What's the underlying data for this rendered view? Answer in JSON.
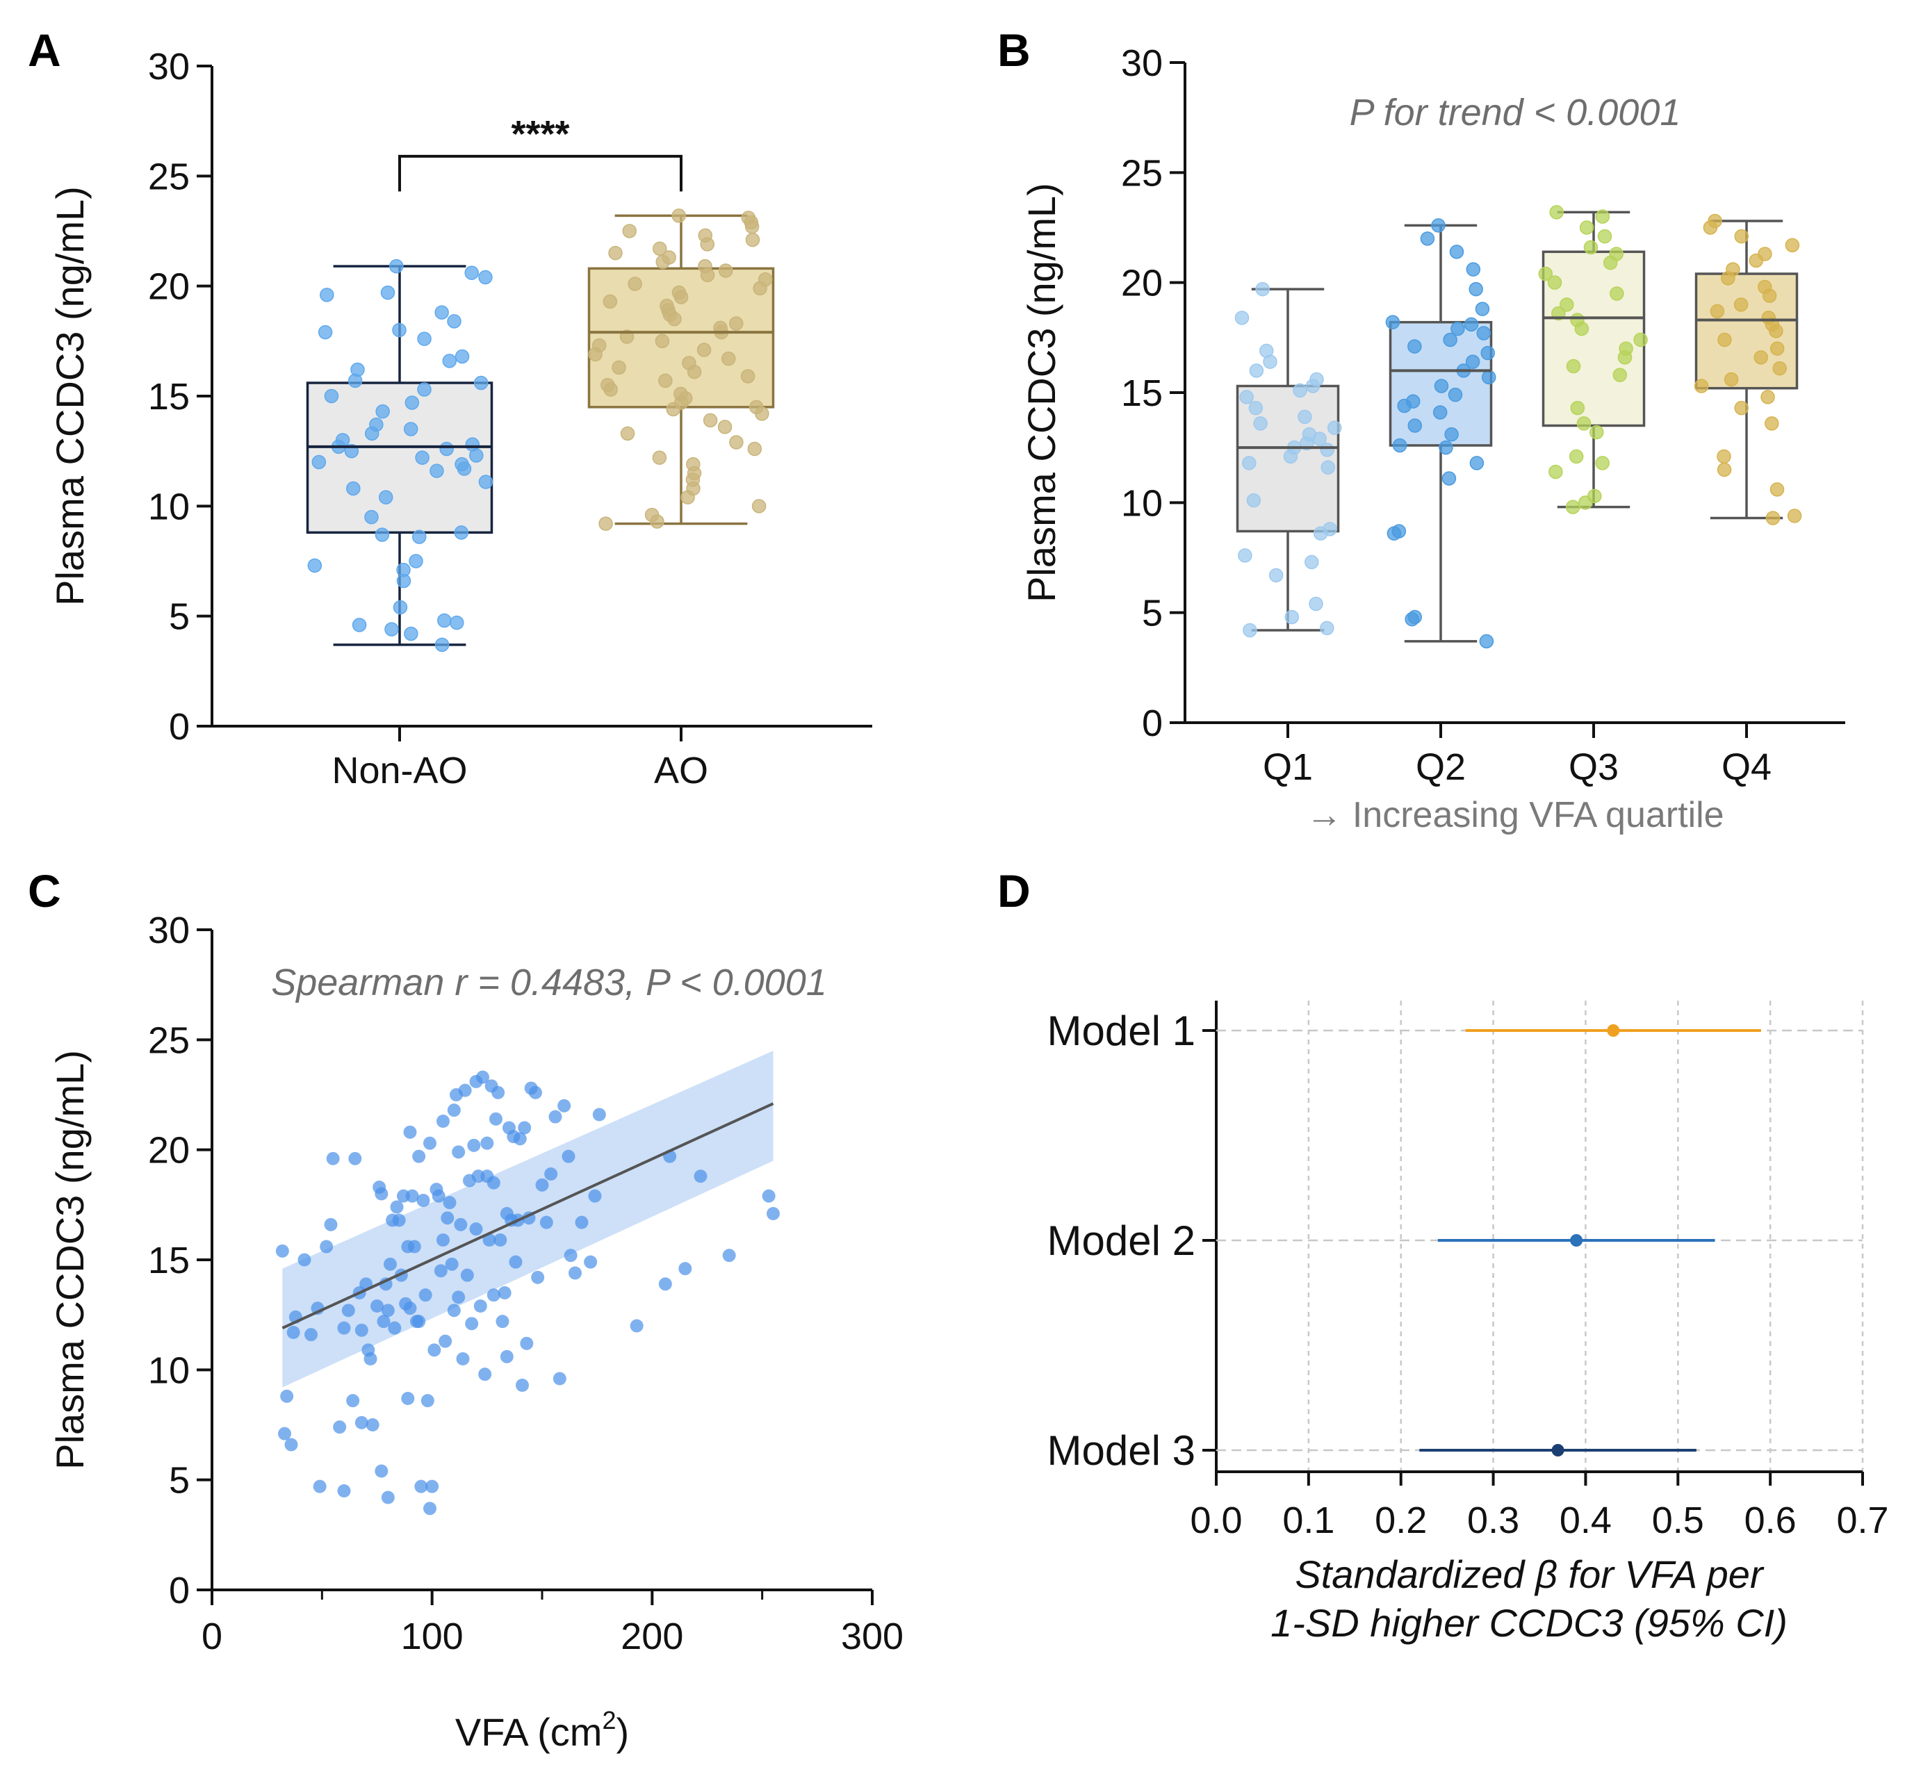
{
  "chart_data": [
    {
      "panel": "A",
      "type": "box",
      "ylabel": "Plasma CCDC3 (ng/mL)",
      "ylim": [
        0,
        30
      ],
      "yticks": [
        0,
        5,
        10,
        15,
        20,
        25,
        30
      ],
      "categories": [
        "Non-AO",
        "AO"
      ],
      "significance": "****",
      "boxes": [
        {
          "name": "Non-AO",
          "min": 3.7,
          "q1": 8.8,
          "median": 12.7,
          "q3": 15.6,
          "max": 20.9,
          "color": "#5fa8ec",
          "fill": "#e9e9e9",
          "edge": "#16243f",
          "points": [
            3.7,
            4.2,
            4.4,
            4.6,
            4.7,
            4.8,
            5.4,
            6.6,
            7.1,
            7.3,
            7.5,
            8.6,
            8.7,
            8.8,
            9.5,
            10.4,
            10.8,
            11.1,
            11.6,
            11.7,
            11.9,
            12.0,
            12.2,
            12.3,
            12.5,
            12.6,
            12.7,
            12.8,
            13.0,
            13.3,
            13.5,
            13.7,
            14.3,
            14.7,
            15.0,
            15.3,
            15.6,
            15.7,
            16.2,
            16.6,
            16.8,
            17.6,
            17.9,
            18.0,
            18.4,
            18.8,
            19.6,
            19.7,
            20.4,
            20.6,
            20.9
          ]
        },
        {
          "name": "AO",
          "min": 9.2,
          "q1": 14.5,
          "median": 17.9,
          "q3": 20.8,
          "max": 23.2,
          "color": "#c9b47a",
          "fill": "#e9dcae",
          "edge": "#8a7440",
          "points": [
            9.2,
            9.3,
            9.6,
            10.0,
            10.4,
            10.8,
            11.2,
            11.5,
            11.9,
            12.2,
            12.6,
            12.9,
            13.3,
            13.6,
            13.9,
            14.2,
            14.4,
            14.5,
            14.7,
            14.9,
            15.1,
            15.3,
            15.5,
            15.7,
            15.9,
            16.1,
            16.3,
            16.5,
            16.7,
            16.9,
            17.1,
            17.3,
            17.5,
            17.7,
            17.9,
            18.1,
            18.3,
            18.5,
            18.7,
            18.9,
            19.1,
            19.3,
            19.5,
            19.7,
            19.9,
            20.1,
            20.3,
            20.5,
            20.7,
            20.9,
            21.1,
            21.3,
            21.5,
            21.7,
            21.9,
            22.1,
            22.3,
            22.5,
            22.7,
            22.9,
            23.1,
            23.2
          ]
        }
      ]
    },
    {
      "panel": "B",
      "type": "box",
      "ylabel": "Plasma CCDC3 (ng/mL)",
      "ylim": [
        0,
        30
      ],
      "yticks": [
        0,
        5,
        10,
        15,
        20,
        25,
        30
      ],
      "categories": [
        "Q1",
        "Q2",
        "Q3",
        "Q4"
      ],
      "xnote": "→ Increasing VFA quartile",
      "annotation": "P for trend < 0.0001",
      "boxes": [
        {
          "name": "Q1",
          "min": 4.2,
          "q1": 8.7,
          "median": 12.5,
          "q3": 15.3,
          "max": 19.7,
          "color": "#9ec9ee",
          "fill": "#e6e6e6",
          "edge": "#555555",
          "points": [
            4.2,
            4.3,
            4.8,
            5.4,
            6.7,
            7.3,
            7.6,
            8.6,
            8.8,
            10.1,
            11.6,
            11.8,
            12.1,
            12.4,
            12.5,
            12.7,
            12.9,
            13.1,
            13.4,
            13.6,
            13.9,
            14.3,
            14.8,
            15.1,
            15.3,
            15.6,
            16.0,
            16.4,
            16.9,
            18.4,
            19.7
          ]
        },
        {
          "name": "Q2",
          "min": 3.7,
          "q1": 12.6,
          "median": 16.0,
          "q3": 18.2,
          "max": 22.6,
          "color": "#4a9be0",
          "fill": "#c3dbf4",
          "edge": "#555555",
          "points": [
            3.7,
            4.7,
            4.8,
            8.6,
            8.7,
            11.1,
            11.8,
            12.5,
            12.6,
            13.1,
            13.5,
            14.1,
            14.4,
            14.6,
            14.9,
            15.3,
            15.7,
            16.0,
            16.4,
            16.8,
            17.1,
            17.4,
            17.7,
            17.9,
            18.1,
            18.2,
            18.8,
            19.7,
            20.6,
            21.4,
            22.0,
            22.6
          ]
        },
        {
          "name": "Q3",
          "min": 9.8,
          "q1": 13.5,
          "median": 18.4,
          "q3": 21.4,
          "max": 23.2,
          "color": "#b6d358",
          "fill": "#f3f2dc",
          "edge": "#555555",
          "points": [
            9.8,
            10.0,
            10.3,
            11.4,
            11.8,
            12.1,
            13.2,
            13.6,
            14.3,
            15.8,
            16.2,
            16.6,
            17.0,
            17.4,
            17.9,
            18.3,
            18.6,
            19.0,
            19.5,
            20.0,
            20.4,
            20.9,
            21.3,
            21.6,
            22.1,
            22.5,
            23.0,
            23.2
          ]
        },
        {
          "name": "Q4",
          "min": 9.3,
          "q1": 15.2,
          "median": 18.3,
          "q3": 20.4,
          "max": 22.8,
          "color": "#d6b34f",
          "fill": "#ecddb0",
          "edge": "#555555",
          "points": [
            9.3,
            9.4,
            10.6,
            11.5,
            12.1,
            13.6,
            14.3,
            14.8,
            15.3,
            15.6,
            16.1,
            16.6,
            17.0,
            17.4,
            17.8,
            18.1,
            18.4,
            18.7,
            19.0,
            19.4,
            19.8,
            20.2,
            20.6,
            21.0,
            21.3,
            21.7,
            22.1,
            22.5,
            22.8
          ]
        }
      ]
    },
    {
      "panel": "C",
      "type": "scatter",
      "xlabel": "VFA (cm",
      "xlabel_sup": "2",
      "xlabel_end": ")",
      "ylabel": "Plasma CCDC3 (ng/mL)",
      "xlim": [
        0,
        300
      ],
      "ylim": [
        0,
        30
      ],
      "xticks": [
        0,
        100,
        200,
        300
      ],
      "yticks": [
        0,
        5,
        10,
        15,
        20,
        25,
        30
      ],
      "annotation": "Spearman r = 0.4483, P < 0.0001",
      "fit": {
        "x0": 32,
        "y0": 11.9,
        "x1": 255,
        "y1": 22.1,
        "ci_low": [
          9.2,
          19.5
        ],
        "ci_high": [
          14.6,
          24.5
        ]
      },
      "points": [
        [
          32,
          15.4
        ],
        [
          33,
          7.1
        ],
        [
          34,
          8.8
        ],
        [
          36,
          6.6
        ],
        [
          37,
          11.7
        ],
        [
          38,
          12.4
        ],
        [
          42,
          15.0
        ],
        [
          45,
          11.6
        ],
        [
          48,
          12.8
        ],
        [
          49,
          4.7
        ],
        [
          52,
          15.6
        ],
        [
          54,
          16.6
        ],
        [
          55,
          19.6
        ],
        [
          58,
          7.4
        ],
        [
          60,
          4.5
        ],
        [
          60,
          11.9
        ],
        [
          62,
          12.7
        ],
        [
          64,
          8.6
        ],
        [
          65,
          19.6
        ],
        [
          67,
          13.5
        ],
        [
          68,
          7.6
        ],
        [
          68,
          11.8
        ],
        [
          70,
          13.9
        ],
        [
          71,
          10.9
        ],
        [
          72,
          10.5
        ],
        [
          73,
          7.5
        ],
        [
          75,
          12.9
        ],
        [
          76,
          18.3
        ],
        [
          77,
          18.0
        ],
        [
          77,
          5.4
        ],
        [
          78,
          12.2
        ],
        [
          79,
          13.9
        ],
        [
          80,
          12.7
        ],
        [
          80,
          4.2
        ],
        [
          81,
          14.8
        ],
        [
          82,
          16.8
        ],
        [
          83,
          11.9
        ],
        [
          84,
          17.4
        ],
        [
          85,
          16.8
        ],
        [
          86,
          14.3
        ],
        [
          87,
          17.9
        ],
        [
          88,
          13.0
        ],
        [
          89,
          8.7
        ],
        [
          89,
          15.6
        ],
        [
          90,
          12.8
        ],
        [
          90,
          20.8
        ],
        [
          91,
          17.9
        ],
        [
          92,
          15.6
        ],
        [
          93,
          12.2
        ],
        [
          94,
          19.7
        ],
        [
          94,
          12.2
        ],
        [
          95,
          4.7
        ],
        [
          96,
          17.7
        ],
        [
          97,
          13.4
        ],
        [
          98,
          8.6
        ],
        [
          99,
          20.3
        ],
        [
          99,
          3.7
        ],
        [
          100,
          4.7
        ],
        [
          101,
          10.9
        ],
        [
          102,
          18.2
        ],
        [
          103,
          17.9
        ],
        [
          104,
          14.5
        ],
        [
          105,
          21.3
        ],
        [
          105,
          15.9
        ],
        [
          106,
          11.3
        ],
        [
          107,
          16.9
        ],
        [
          108,
          17.6
        ],
        [
          109,
          14.8
        ],
        [
          110,
          12.7
        ],
        [
          110,
          21.8
        ],
        [
          111,
          22.5
        ],
        [
          112,
          13.3
        ],
        [
          112,
          19.9
        ],
        [
          113,
          16.6
        ],
        [
          114,
          10.5
        ],
        [
          115,
          22.7
        ],
        [
          116,
          14.3
        ],
        [
          117,
          18.6
        ],
        [
          118,
          12.1
        ],
        [
          119,
          20.2
        ],
        [
          120,
          23.1
        ],
        [
          120,
          16.4
        ],
        [
          121,
          18.8
        ],
        [
          122,
          12.9
        ],
        [
          123,
          23.3
        ],
        [
          124,
          9.8
        ],
        [
          125,
          20.3
        ],
        [
          125,
          18.8
        ],
        [
          126,
          15.9
        ],
        [
          127,
          22.9
        ],
        [
          128,
          13.4
        ],
        [
          128,
          18.5
        ],
        [
          129,
          21.4
        ],
        [
          130,
          22.6
        ],
        [
          131,
          15.9
        ],
        [
          132,
          12.2
        ],
        [
          133,
          13.5
        ],
        [
          134,
          17.1
        ],
        [
          134,
          10.6
        ],
        [
          135,
          21.0
        ],
        [
          136,
          16.8
        ],
        [
          137,
          20.6
        ],
        [
          138,
          14.9
        ],
        [
          139,
          16.8
        ],
        [
          140,
          20.5
        ],
        [
          141,
          9.3
        ],
        [
          142,
          21.0
        ],
        [
          143,
          11.2
        ],
        [
          144,
          16.9
        ],
        [
          145,
          22.8
        ],
        [
          147,
          22.6
        ],
        [
          148,
          14.2
        ],
        [
          150,
          18.4
        ],
        [
          152,
          16.7
        ],
        [
          154,
          18.9
        ],
        [
          156,
          21.5
        ],
        [
          158,
          9.6
        ],
        [
          160,
          22.0
        ],
        [
          162,
          19.7
        ],
        [
          163,
          15.2
        ],
        [
          165,
          14.4
        ],
        [
          168,
          16.7
        ],
        [
          172,
          14.9
        ],
        [
          174,
          17.9
        ],
        [
          176,
          21.6
        ],
        [
          193,
          12.0
        ],
        [
          206,
          13.9
        ],
        [
          208,
          19.7
        ],
        [
          215,
          14.6
        ],
        [
          222,
          18.8
        ],
        [
          235,
          15.2
        ],
        [
          253,
          17.9
        ],
        [
          255,
          17.1
        ]
      ]
    },
    {
      "panel": "D",
      "type": "forest",
      "xlabel_line1": "Standardized β for VFA per",
      "xlabel_line2": "1-SD higher CCDC3 (95% CI)",
      "xlim": [
        0,
        0.7
      ],
      "xticks": [
        "0.0",
        "0.1",
        "0.2",
        "0.3",
        "0.4",
        "0.5",
        "0.6",
        "0.7"
      ],
      "models": [
        {
          "label": "Model 1",
          "estimate": 0.43,
          "low": 0.27,
          "high": 0.59,
          "color": "#f0a020"
        },
        {
          "label": "Model 2",
          "estimate": 0.39,
          "low": 0.24,
          "high": 0.54,
          "color": "#2b72b8"
        },
        {
          "label": "Model 3",
          "estimate": 0.37,
          "low": 0.22,
          "high": 0.52,
          "color": "#1c3f73"
        }
      ]
    }
  ]
}
